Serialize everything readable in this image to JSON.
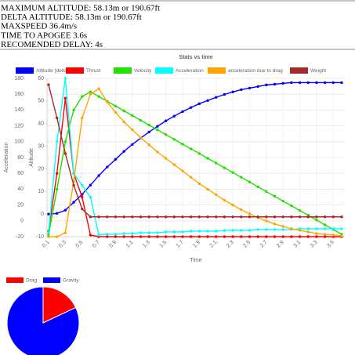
{
  "stats": [
    "MAXIMUM ALTITUDE: 58.13m or 190.67ft",
    "DELTA ALTITUDE: 58.13m or 190.67ft",
    "MAXSPEED 36.4m/s",
    "TIME TO APOGEE 3.6s",
    "RECOMENDED DELAY: 4s"
  ],
  "chart_data": [
    {
      "type": "line",
      "title": "Stats vs time",
      "xlabel": "Time",
      "ylabel": "Acceleration",
      "y2label": "Altitude",
      "categories": [
        0.1,
        null,
        0.3,
        null,
        0.5,
        null,
        0.7,
        null,
        0.9,
        null,
        1.1,
        null,
        1.3,
        null,
        1.5,
        null,
        1.7,
        null,
        1.9,
        null,
        2.1,
        null,
        2.3,
        null,
        2.5,
        null,
        2.7,
        null,
        2.9,
        null,
        3.1,
        null,
        3.3,
        null,
        3.5,
        null
      ],
      "ylim": [
        -20,
        180
      ],
      "yticks": [
        -20,
        0,
        20,
        40,
        60,
        80,
        100,
        120,
        140,
        160,
        180
      ],
      "y2lim": [
        -10,
        60
      ],
      "y2ticks": [
        -10,
        0,
        10,
        20,
        30,
        40,
        50,
        60
      ],
      "grid": true,
      "legend": "top",
      "series": [
        {
          "name": "Altitude (delta)",
          "color": "#0000ff",
          "axis": "y2",
          "values": [
            0,
            0.3,
            1.7,
            5.2,
            8.7,
            12.8,
            17,
            20.8,
            24.2,
            27.7,
            30.8,
            33.6,
            36.3,
            38.8,
            41.2,
            43.3,
            45.3,
            47.1,
            48.8,
            50.2,
            51.6,
            52.9,
            54,
            55,
            55.7,
            56.4,
            57.1,
            57.4,
            57.8,
            58.1,
            58.1,
            58.1,
            58.1,
            58.1,
            58.1,
            58.1
          ]
        },
        {
          "name": "Thrust",
          "color": "#ff0000",
          "values": [
            -13,
            60,
            155,
            60,
            30,
            -18,
            -20,
            -20,
            -20,
            -20,
            -20,
            -20,
            -20,
            -20,
            -20,
            -20,
            -20,
            -20,
            -20,
            -20,
            -20,
            -20,
            -20,
            -20,
            -20,
            -20,
            -20,
            -20,
            -20,
            -20,
            -20,
            -20,
            -20,
            -20,
            -20,
            -20
          ]
        },
        {
          "name": "Velocity",
          "color": "#22e000",
          "values": [
            -18,
            40,
            100,
            140,
            157,
            163,
            157,
            151,
            145,
            139,
            133,
            127,
            121,
            115,
            109,
            103,
            97,
            91,
            85,
            79,
            73,
            67,
            61,
            55,
            49,
            43,
            37,
            31,
            25,
            19,
            13,
            7,
            1,
            -5,
            -11,
            -17
          ]
        },
        {
          "name": "Acceleration",
          "color": "#00ffff",
          "values": [
            -15,
            100,
            180,
            60,
            45,
            30,
            -18,
            -17,
            -17,
            -16,
            -16,
            -15,
            -15,
            -15,
            -14,
            -14,
            -14,
            -13,
            -13,
            -13,
            -13,
            -12,
            -12,
            -12,
            -12,
            -11,
            -11,
            -11,
            -11,
            -11,
            -10,
            -10,
            -10,
            -10,
            -10,
            -10
          ]
        },
        {
          "name": "acceleration due to drag",
          "color": "#ffa500",
          "values": [
            -20,
            -20,
            -15,
            50,
            130,
            160,
            167,
            150,
            137,
            125,
            115,
            105,
            96,
            87,
            79,
            71,
            63,
            55,
            47,
            40,
            33,
            26,
            20,
            14,
            9,
            4,
            0,
            -4,
            -7,
            -10,
            -12,
            -14,
            -16,
            -17,
            -18,
            -19
          ]
        },
        {
          "name": "Weight",
          "color": "#a52a2a",
          "values": [
            172,
            130,
            85,
            45,
            15,
            5,
            5,
            5,
            5,
            5,
            5,
            5,
            5,
            5,
            5,
            5,
            5,
            5,
            5,
            5,
            5,
            5,
            5,
            5,
            5,
            5,
            5,
            5,
            5,
            5,
            5,
            5,
            5,
            5,
            5,
            5
          ]
        }
      ]
    },
    {
      "type": "pie",
      "categories": [
        "Drag",
        "Gravity"
      ],
      "values": [
        18,
        82
      ],
      "colors": [
        "#ff0000",
        "#0000ff"
      ]
    }
  ]
}
